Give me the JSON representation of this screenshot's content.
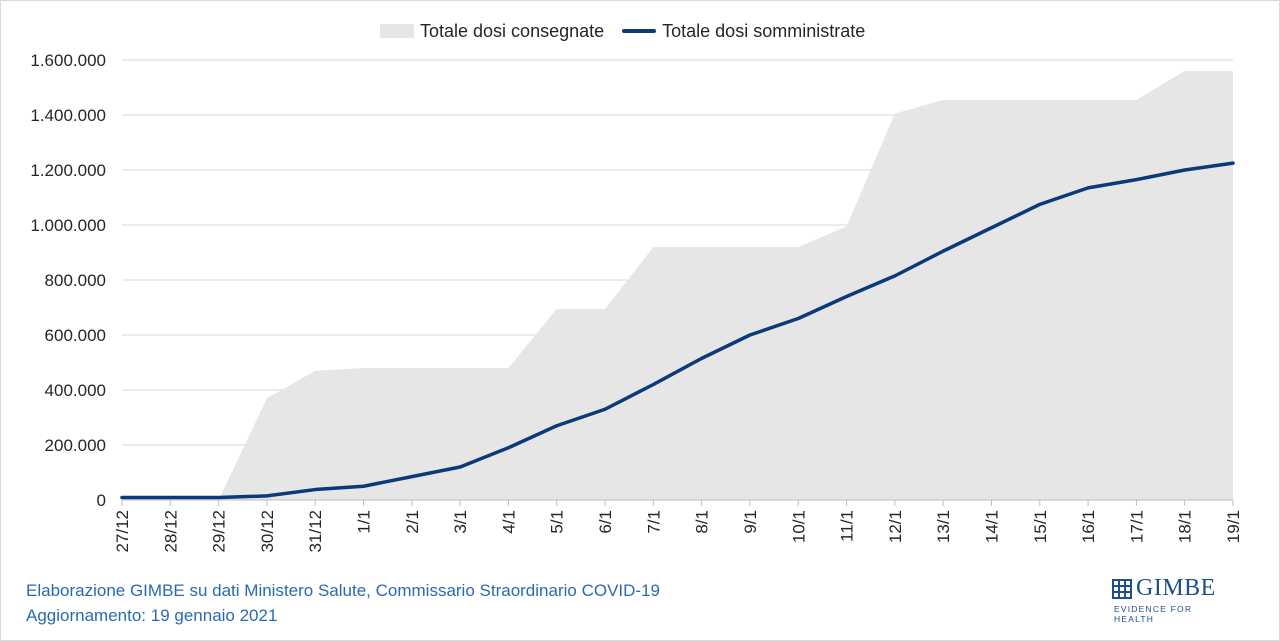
{
  "legend": {
    "area_label": "Totale dosi consegnate",
    "line_label": "Totale dosi somministrate"
  },
  "footer": {
    "source": "Elaborazione GIMBE su dati Ministero Salute, Commissario Straordinario COVID-19",
    "updated": "Aggiornamento: 19 gennaio 2021"
  },
  "logo": {
    "name": "GIMBE",
    "tagline": "EVIDENCE FOR HEALTH"
  },
  "colors": {
    "area": "#e6e6e6",
    "line": "#0a3a7a",
    "grid": "#d9d9d9",
    "footer_text": "#2a6ab3"
  },
  "chart_data": {
    "type": "area",
    "categories": [
      "27/12",
      "28/12",
      "29/12",
      "30/12",
      "31/12",
      "1/1",
      "2/1",
      "3/1",
      "4/1",
      "5/1",
      "6/1",
      "7/1",
      "8/1",
      "9/1",
      "10/1",
      "11/1",
      "12/1",
      "13/1",
      "14/1",
      "15/1",
      "16/1",
      "17/1",
      "18/1",
      "19/1"
    ],
    "series": [
      {
        "name": "Totale dosi consegnate",
        "type": "area",
        "values": [
          0,
          0,
          0,
          370000,
          470000,
          480000,
          480000,
          480000,
          480000,
          695000,
          695000,
          920000,
          920000,
          920000,
          920000,
          995000,
          1405000,
          1455000,
          1455000,
          1455000,
          1455000,
          1455000,
          1560000,
          1560000
        ]
      },
      {
        "name": "Totale dosi somministrate",
        "type": "line",
        "values": [
          9000,
          9000,
          9000,
          15000,
          38000,
          50000,
          85000,
          120000,
          190000,
          270000,
          330000,
          420000,
          515000,
          600000,
          660000,
          740000,
          815000,
          905000,
          990000,
          1075000,
          1135000,
          1165000,
          1200000,
          1225000
        ]
      }
    ],
    "y_ticks": [
      "0",
      "200.000",
      "400.000",
      "600.000",
      "800.000",
      "1.000.000",
      "1.200.000",
      "1.400.000",
      "1.600.000"
    ],
    "ylim": [
      0,
      1600000
    ],
    "y_step": 200000,
    "grid": true,
    "legend_position": "top"
  }
}
